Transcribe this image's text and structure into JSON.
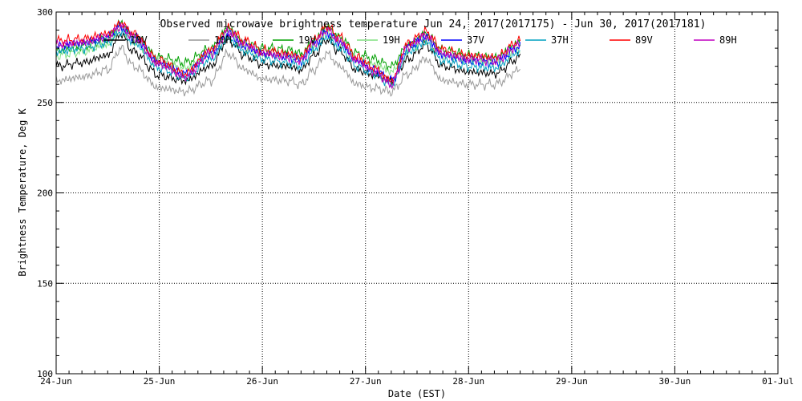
{
  "chart_data": {
    "type": "line",
    "title": "Observed microwave brightness temperature Jun 24, 2017(2017175) - Jun 30, 2017(2017181)",
    "xlabel": "Date (EST)",
    "ylabel": "Brightness Temperature, Deg K",
    "xlim": [
      "2017-06-24",
      "2017-07-01"
    ],
    "ylim": [
      100,
      300
    ],
    "x_ticks": [
      "24-Jun",
      "25-Jun",
      "26-Jun",
      "27-Jun",
      "28-Jun",
      "29-Jun",
      "30-Jun",
      "01-Jul"
    ],
    "y_ticks": [
      100,
      150,
      200,
      250,
      300
    ],
    "grid": true,
    "legend_position": "top",
    "x": [
      "2017-06-24 00:00",
      "2017-06-24 06:00",
      "2017-06-24 12:00",
      "2017-06-24 15:00",
      "2017-06-24 18:00",
      "2017-06-25 00:00",
      "2017-06-25 06:00",
      "2017-06-25 12:00",
      "2017-06-25 16:00",
      "2017-06-25 20:00",
      "2017-06-26 00:00",
      "2017-06-26 06:00",
      "2017-06-26 09:00",
      "2017-06-26 12:00",
      "2017-06-26 15:00",
      "2017-06-26 18:00",
      "2017-06-26 22:00",
      "2017-06-27 02:00",
      "2017-06-27 06:00",
      "2017-06-27 10:00",
      "2017-06-27 14:00",
      "2017-06-27 18:00",
      "2017-06-28 00:00",
      "2017-06-28 06:00",
      "2017-06-28 12:00"
    ],
    "series": [
      {
        "name": "10V",
        "color": "#000000",
        "values": [
          270,
          272,
          276,
          288,
          278,
          265,
          262,
          270,
          285,
          276,
          271,
          270,
          268,
          276,
          285,
          278,
          268,
          265,
          262,
          274,
          282,
          270,
          267,
          266,
          275
        ]
      },
      {
        "name": "10H",
        "color": "#999999",
        "values": [
          262,
          264,
          268,
          280,
          270,
          258,
          256,
          262,
          277,
          268,
          263,
          262,
          260,
          268,
          277,
          270,
          260,
          258,
          256,
          266,
          274,
          262,
          260,
          260,
          268
        ]
      },
      {
        "name": "19V",
        "color": "#00a000",
        "values": [
          279,
          281,
          285,
          294,
          287,
          275,
          272,
          280,
          291,
          283,
          280,
          279,
          277,
          284,
          292,
          286,
          277,
          274,
          270,
          282,
          288,
          279,
          276,
          275,
          283
        ]
      },
      {
        "name": "19H",
        "color": "#80e080",
        "values": [
          276,
          278,
          282,
          291,
          284,
          272,
          269,
          277,
          288,
          280,
          277,
          276,
          274,
          281,
          289,
          283,
          274,
          271,
          267,
          279,
          285,
          276,
          273,
          272,
          280
        ]
      },
      {
        "name": "37V",
        "color": "#0000ff",
        "values": [
          281,
          283,
          286,
          292,
          286,
          272,
          266,
          277,
          288,
          281,
          277,
          275,
          273,
          282,
          289,
          283,
          273,
          268,
          262,
          281,
          286,
          276,
          273,
          272,
          281
        ]
      },
      {
        "name": "37H",
        "color": "#00a0c0",
        "values": [
          278,
          280,
          283,
          289,
          283,
          269,
          264,
          274,
          285,
          278,
          274,
          272,
          270,
          279,
          286,
          280,
          270,
          266,
          260,
          278,
          283,
          273,
          270,
          269,
          278
        ]
      },
      {
        "name": "89V",
        "color": "#ff0000",
        "values": [
          284,
          285,
          288,
          294,
          288,
          273,
          266,
          279,
          291,
          284,
          279,
          277,
          275,
          285,
          292,
          286,
          275,
          269,
          262,
          283,
          289,
          279,
          276,
          275,
          284
        ]
      },
      {
        "name": "89H",
        "color": "#c000c0",
        "values": [
          282,
          283,
          286,
          292,
          286,
          271,
          264,
          277,
          289,
          282,
          277,
          275,
          273,
          283,
          290,
          284,
          273,
          267,
          260,
          281,
          287,
          277,
          274,
          273,
          282
        ]
      }
    ]
  }
}
